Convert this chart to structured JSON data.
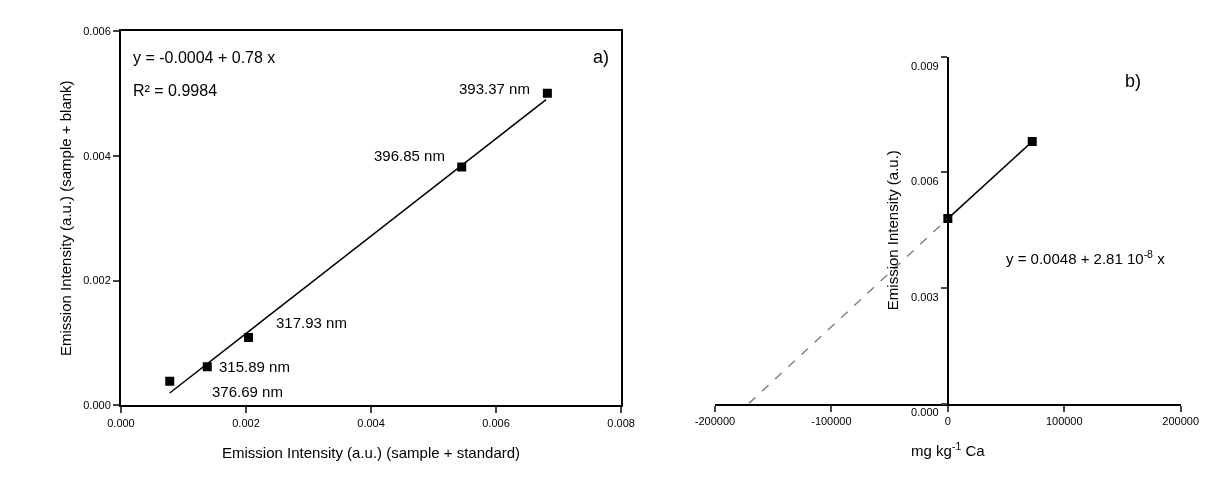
{
  "chart_data": [
    {
      "type": "scatter",
      "xlabel": "Emission Intensity (a.u.) (sample + standard)",
      "ylabel": "Emission Intensity (a.u.) (sample + blank)",
      "xlim": [
        0,
        0.008
      ],
      "ylim": [
        0,
        0.006
      ],
      "xticks": [
        {
          "value": 0,
          "label": "0.000"
        },
        {
          "value": 0.002,
          "label": "0.002"
        },
        {
          "value": 0.004,
          "label": "0.004"
        },
        {
          "value": 0.006,
          "label": "0.006"
        },
        {
          "value": 0.008,
          "label": "0.008"
        }
      ],
      "yticks": [
        {
          "value": 0,
          "label": "0.000"
        },
        {
          "value": 0.002,
          "label": "0.002"
        },
        {
          "value": 0.004,
          "label": "0.004"
        },
        {
          "value": 0.006,
          "label": "0.006"
        }
      ],
      "marker": "square",
      "series": [
        {
          "color": "#000000",
          "x": [
            0.00078,
            0.00138,
            0.00204,
            0.00545,
            0.00682
          ],
          "values": [
            0.00039,
            0.00062,
            0.00109,
            0.00382,
            0.005
          ]
        },
        {
          "type": "line",
          "color": "#000000",
          "marker": "none",
          "x": [
            0.00078,
            0.0068
          ],
          "values": [
            0.0002,
            0.0049
          ]
        }
      ],
      "annotations": [
        "y = -0.0004 + 0.78 x",
        "R² = 0.9984",
        "a)",
        {
          "text": "376.69 nm",
          "x": 0.00078,
          "y": 0.00039
        },
        {
          "text": "315.89 nm",
          "x": 0.00138,
          "y": 0.00062
        },
        {
          "text": "317.93 nm",
          "x": 0.00204,
          "y": 0.00109
        },
        {
          "text": "396.85 nm",
          "x": 0.00545,
          "y": 0.00382
        },
        {
          "text": "393.37 nm",
          "x": 0.00682,
          "y": 0.005
        }
      ]
    },
    {
      "type": "line",
      "xlabel": "mg kg$^{-1}$ Ca",
      "ylabel": "Emission Intensity (a.u.)",
      "xlim": [
        -200000,
        200000
      ],
      "ylim": [
        0,
        0.009
      ],
      "xticks": [
        -200000,
        -100000,
        0,
        100000,
        200000
      ],
      "yticks": [
        {
          "value": 0,
          "label": "0.000"
        },
        {
          "value": 0.003,
          "label": "0.003"
        },
        {
          "value": 0.006,
          "label": "0.006"
        },
        {
          "value": 0.009,
          "label": "0.009"
        }
      ],
      "series": [
        {
          "color": "#000000",
          "marker": "square",
          "x": [
            0,
            72500
          ],
          "values": [
            0.0048,
            0.0068
          ]
        },
        {
          "color": "#808080",
          "marker": "none",
          "line_style": "dashed",
          "x": [
            -171000,
            0
          ],
          "values": [
            0,
            0.0048
          ]
        }
      ],
      "annotations": [
        "y = 0.0048 + 2.81 10$^{-8}$ x",
        "b)"
      ]
    }
  ]
}
